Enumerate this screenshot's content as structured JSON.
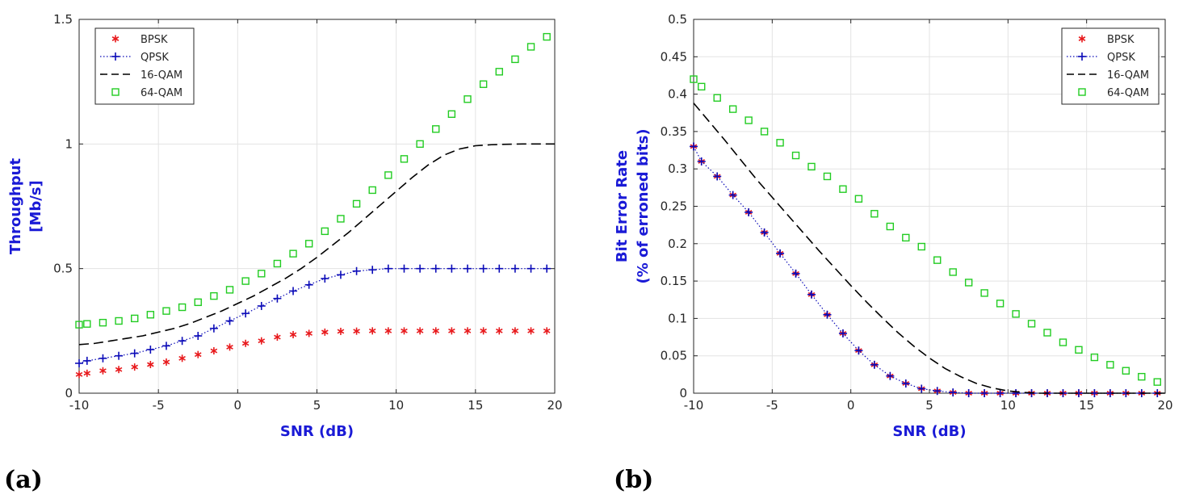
{
  "panels": [
    {
      "label": "(a)"
    },
    {
      "label": "(b)"
    }
  ],
  "colors": {
    "BPSK": "#e8191c",
    "QPSK": "#0b0bb8",
    "16-QAM": "#000000",
    "64-QAM": "#22cc22",
    "axis_label": "#1a1ad6"
  },
  "chart_data": [
    {
      "type": "line",
      "title": "",
      "xlabel": "SNR (dB)",
      "ylabel": [
        "Throughput",
        "[Mb/s]"
      ],
      "xlim": [
        -10,
        20
      ],
      "ylim": [
        0,
        1.5
      ],
      "xticks": [
        -10,
        -5,
        0,
        5,
        10,
        15,
        20
      ],
      "yticks": [
        0,
        0.5,
        1,
        1.5
      ],
      "grid": true,
      "legend_position": "top-left",
      "series": [
        {
          "name": "BPSK",
          "style": "asterisk",
          "x": [
            -10,
            -9.5,
            -8.5,
            -7.5,
            -6.5,
            -5.5,
            -4.5,
            -3.5,
            -2.5,
            -1.5,
            -0.5,
            0.5,
            1.5,
            2.5,
            3.5,
            4.5,
            5.5,
            6.5,
            7.5,
            8.5,
            9.5,
            10.5,
            11.5,
            12.5,
            13.5,
            14.5,
            15.5,
            16.5,
            17.5,
            18.5,
            19.5
          ],
          "y": [
            0.075,
            0.08,
            0.09,
            0.095,
            0.105,
            0.115,
            0.125,
            0.14,
            0.155,
            0.17,
            0.185,
            0.2,
            0.21,
            0.225,
            0.235,
            0.24,
            0.245,
            0.248,
            0.249,
            0.25,
            0.25,
            0.25,
            0.25,
            0.25,
            0.25,
            0.25,
            0.25,
            0.25,
            0.25,
            0.25,
            0.25
          ]
        },
        {
          "name": "QPSK",
          "style": "plus-dotted",
          "x": [
            -10,
            -9.5,
            -8.5,
            -7.5,
            -6.5,
            -5.5,
            -4.5,
            -3.5,
            -2.5,
            -1.5,
            -0.5,
            0.5,
            1.5,
            2.5,
            3.5,
            4.5,
            5.5,
            6.5,
            7.5,
            8.5,
            9.5,
            10.5,
            11.5,
            12.5,
            13.5,
            14.5,
            15.5,
            16.5,
            17.5,
            18.5,
            19.5
          ],
          "y": [
            0.12,
            0.13,
            0.14,
            0.15,
            0.16,
            0.175,
            0.19,
            0.21,
            0.23,
            0.26,
            0.29,
            0.32,
            0.35,
            0.38,
            0.41,
            0.435,
            0.46,
            0.475,
            0.49,
            0.495,
            0.5,
            0.5,
            0.5,
            0.5,
            0.5,
            0.5,
            0.5,
            0.5,
            0.5,
            0.5,
            0.5
          ]
        },
        {
          "name": "16-QAM",
          "style": "dashed",
          "x": [
            -10,
            -9,
            -8,
            -7,
            -6,
            -5,
            -4,
            -3,
            -2,
            -1,
            0,
            1,
            2,
            3,
            4,
            5,
            6,
            7,
            8,
            9,
            10,
            11,
            12,
            13,
            14,
            15,
            16,
            17,
            18,
            19,
            20
          ],
          "y": [
            0.195,
            0.2,
            0.21,
            0.22,
            0.23,
            0.245,
            0.26,
            0.28,
            0.305,
            0.33,
            0.36,
            0.39,
            0.425,
            0.46,
            0.5,
            0.545,
            0.595,
            0.645,
            0.7,
            0.755,
            0.81,
            0.865,
            0.915,
            0.955,
            0.98,
            0.993,
            0.997,
            0.999,
            1.0,
            1.0,
            1.0
          ]
        },
        {
          "name": "64-QAM",
          "style": "square",
          "x": [
            -10,
            -9.5,
            -8.5,
            -7.5,
            -6.5,
            -5.5,
            -4.5,
            -3.5,
            -2.5,
            -1.5,
            -0.5,
            0.5,
            1.5,
            2.5,
            3.5,
            4.5,
            5.5,
            6.5,
            7.5,
            8.5,
            9.5,
            10.5,
            11.5,
            12.5,
            13.5,
            14.5,
            15.5,
            16.5,
            17.5,
            18.5,
            19.5
          ],
          "y": [
            0.275,
            0.278,
            0.283,
            0.29,
            0.3,
            0.315,
            0.33,
            0.345,
            0.365,
            0.39,
            0.415,
            0.45,
            0.48,
            0.52,
            0.56,
            0.6,
            0.65,
            0.7,
            0.76,
            0.815,
            0.875,
            0.94,
            1.0,
            1.06,
            1.12,
            1.18,
            1.24,
            1.29,
            1.34,
            1.39,
            1.43
          ]
        }
      ]
    },
    {
      "type": "line",
      "title": "",
      "xlabel": "SNR (dB)",
      "ylabel": [
        "Bit Error Rate",
        "(% of erroned bits)"
      ],
      "xlim": [
        -10,
        20
      ],
      "ylim": [
        0,
        0.5
      ],
      "xticks": [
        -10,
        -5,
        0,
        5,
        10,
        15,
        20
      ],
      "yticks": [
        0,
        0.05,
        0.1,
        0.15,
        0.2,
        0.25,
        0.3,
        0.35,
        0.4,
        0.45,
        0.5
      ],
      "grid": true,
      "legend_position": "top-right",
      "series": [
        {
          "name": "BPSK",
          "style": "asterisk",
          "x": [
            -10,
            -9.5,
            -8.5,
            -7.5,
            -6.5,
            -5.5,
            -4.5,
            -3.5,
            -2.5,
            -1.5,
            -0.5,
            0.5,
            1.5,
            2.5,
            3.5,
            4.5,
            5.5,
            6.5,
            7.5,
            8.5,
            9.5,
            10.5,
            11.5,
            12.5,
            13.5,
            14.5,
            15.5,
            16.5,
            17.5,
            18.5,
            19.5
          ],
          "y": [
            0.33,
            0.31,
            0.29,
            0.265,
            0.242,
            0.215,
            0.187,
            0.16,
            0.132,
            0.105,
            0.08,
            0.057,
            0.038,
            0.023,
            0.013,
            0.006,
            0.003,
            0.001,
            0,
            0,
            0,
            0,
            0,
            0,
            0,
            0,
            0,
            0,
            0,
            0,
            0
          ]
        },
        {
          "name": "QPSK",
          "style": "plus-dotted",
          "x": [
            -10,
            -9.5,
            -8.5,
            -7.5,
            -6.5,
            -5.5,
            -4.5,
            -3.5,
            -2.5,
            -1.5,
            -0.5,
            0.5,
            1.5,
            2.5,
            3.5,
            4.5,
            5.5,
            6.5,
            7.5,
            8.5,
            9.5,
            10.5,
            11.5,
            12.5,
            13.5,
            14.5,
            15.5,
            16.5,
            17.5,
            18.5,
            19.5
          ],
          "y": [
            0.33,
            0.31,
            0.29,
            0.265,
            0.242,
            0.215,
            0.187,
            0.16,
            0.132,
            0.105,
            0.08,
            0.057,
            0.038,
            0.023,
            0.013,
            0.006,
            0.003,
            0.001,
            0,
            0,
            0,
            0,
            0,
            0,
            0,
            0,
            0,
            0,
            0,
            0,
            0
          ]
        },
        {
          "name": "16-QAM",
          "style": "dashed",
          "x": [
            -10,
            -9,
            -8,
            -7,
            -6,
            -5,
            -4,
            -3,
            -2,
            -1,
            0,
            1,
            2,
            3,
            4,
            5,
            6,
            7,
            8,
            9,
            10,
            11,
            12,
            13,
            14,
            15,
            16,
            17,
            18,
            19,
            20
          ],
          "y": [
            0.388,
            0.363,
            0.338,
            0.312,
            0.286,
            0.262,
            0.238,
            0.214,
            0.19,
            0.167,
            0.144,
            0.122,
            0.101,
            0.081,
            0.063,
            0.047,
            0.033,
            0.022,
            0.013,
            0.007,
            0.003,
            0.001,
            0,
            0,
            0,
            0,
            0,
            0,
            0,
            0,
            0
          ]
        },
        {
          "name": "64-QAM",
          "style": "square",
          "x": [
            -10,
            -9.5,
            -8.5,
            -7.5,
            -6.5,
            -5.5,
            -4.5,
            -3.5,
            -2.5,
            -1.5,
            -0.5,
            0.5,
            1.5,
            2.5,
            3.5,
            4.5,
            5.5,
            6.5,
            7.5,
            8.5,
            9.5,
            10.5,
            11.5,
            12.5,
            13.5,
            14.5,
            15.5,
            16.5,
            17.5,
            18.5,
            19.5
          ],
          "y": [
            0.42,
            0.41,
            0.395,
            0.38,
            0.365,
            0.35,
            0.335,
            0.318,
            0.303,
            0.29,
            0.273,
            0.26,
            0.24,
            0.223,
            0.208,
            0.196,
            0.178,
            0.162,
            0.148,
            0.134,
            0.12,
            0.106,
            0.093,
            0.081,
            0.068,
            0.058,
            0.048,
            0.038,
            0.03,
            0.022,
            0.015
          ]
        }
      ]
    }
  ]
}
